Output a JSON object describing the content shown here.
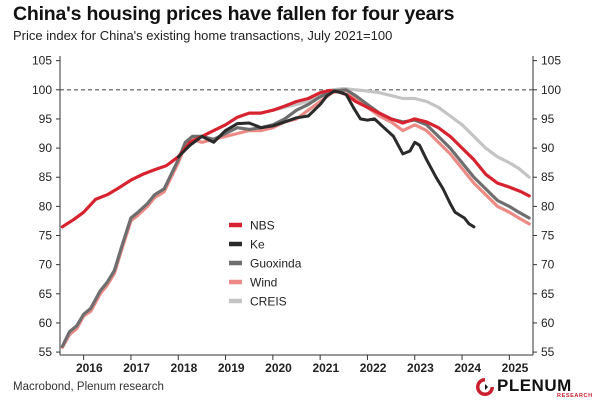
{
  "header": {
    "title": "China's housing prices have fallen for four years",
    "subtitle": "Price index for China's existing home transactions, July 2021=100"
  },
  "footer": {
    "source": "Macrobond, Plenum research",
    "logo_text": "PLENUM",
    "logo_subtext": "RESEARCH",
    "logo_color": "#c8202f"
  },
  "chart_data": {
    "type": "line",
    "title": "China's housing prices have fallen for four years",
    "subtitle": "Price index for China's existing home transactions, July 2021=100",
    "x_unit": "year",
    "xlim": [
      2015.5,
      2025.5
    ],
    "ylim": [
      54.5,
      105.8
    ],
    "x_ticks": [
      "2016",
      "2017",
      "2018",
      "2019",
      "2020",
      "2021",
      "2022",
      "2023",
      "2024",
      "2025"
    ],
    "y_ticks": [
      55,
      60,
      65,
      70,
      75,
      80,
      85,
      90,
      95,
      100,
      105
    ],
    "y_axis_both_sides": true,
    "reference_line": {
      "y": 100,
      "style": "dashed"
    },
    "grid": false,
    "legend_position": "center-left",
    "series": [
      {
        "name": "NBS",
        "color": "#d7222f",
        "width": 3.2,
        "x": [
          2015.55,
          2015.8,
          2016.0,
          2016.25,
          2016.5,
          2016.75,
          2017.0,
          2017.25,
          2017.5,
          2017.75,
          2018.0,
          2018.25,
          2018.5,
          2018.75,
          2019.0,
          2019.25,
          2019.5,
          2019.75,
          2020.0,
          2020.25,
          2020.5,
          2020.75,
          2021.0,
          2021.2,
          2021.4,
          2021.55,
          2021.75,
          2022.0,
          2022.25,
          2022.5,
          2022.75,
          2023.0,
          2023.25,
          2023.5,
          2023.75,
          2024.0,
          2024.25,
          2024.5,
          2024.75,
          2025.0,
          2025.25,
          2025.42
        ],
        "y": [
          76.5,
          77.8,
          79.0,
          81.2,
          82.0,
          83.2,
          84.5,
          85.5,
          86.3,
          87.0,
          88.5,
          91.0,
          92.0,
          93.0,
          94.0,
          95.3,
          96.0,
          96.0,
          96.5,
          97.2,
          98.0,
          98.5,
          99.5,
          99.9,
          99.6,
          99.2,
          98.0,
          97.0,
          96.0,
          95.0,
          94.3,
          95.0,
          94.5,
          93.5,
          92.0,
          90.0,
          88.0,
          85.5,
          84.0,
          83.3,
          82.5,
          81.8
        ]
      },
      {
        "name": "Ke",
        "color": "#2a2a2a",
        "width": 3.0,
        "x": [
          2018.0,
          2018.25,
          2018.5,
          2018.75,
          2019.0,
          2019.25,
          2019.5,
          2019.75,
          2020.0,
          2020.25,
          2020.5,
          2020.75,
          2021.0,
          2021.15,
          2021.3,
          2021.45,
          2021.55,
          2021.7,
          2021.85,
          2022.0,
          2022.15,
          2022.35,
          2022.55,
          2022.75,
          2022.9,
          2023.0,
          2023.1,
          2023.25,
          2023.45,
          2023.6,
          2023.75,
          2023.85,
          2023.95,
          2024.05,
          2024.15,
          2024.25
        ],
        "y": [
          88.5,
          90.5,
          92.0,
          91.0,
          93.0,
          94.2,
          94.3,
          93.5,
          93.8,
          94.5,
          95.2,
          95.5,
          97.5,
          99.0,
          99.8,
          99.5,
          99.2,
          97.0,
          95.0,
          94.8,
          95.0,
          93.5,
          92.0,
          89.0,
          89.5,
          91.0,
          90.5,
          88.0,
          85.0,
          83.0,
          80.5,
          79.0,
          78.5,
          78.0,
          77.0,
          76.5
        ]
      },
      {
        "name": "Guoxinda",
        "color": "#6e6e6e",
        "width": 3.2,
        "x": [
          2015.55,
          2015.7,
          2015.85,
          2016.0,
          2016.15,
          2016.35,
          2016.5,
          2016.65,
          2016.8,
          2017.0,
          2017.15,
          2017.35,
          2017.5,
          2017.7,
          2017.85,
          2018.0,
          2018.15,
          2018.3,
          2018.5,
          2018.75,
          2019.0,
          2019.25,
          2019.5,
          2019.75,
          2020.0,
          2020.25,
          2020.5,
          2020.75,
          2021.0,
          2021.25,
          2021.55,
          2021.75,
          2022.0,
          2022.25,
          2022.5,
          2022.75,
          2023.0,
          2023.25,
          2023.5,
          2023.75,
          2024.0,
          2024.25,
          2024.5,
          2024.75,
          2025.0,
          2025.2,
          2025.42
        ],
        "y": [
          56.0,
          58.5,
          59.5,
          61.5,
          62.5,
          65.5,
          67.0,
          69.0,
          73.0,
          78.0,
          79.0,
          80.5,
          82.0,
          83.0,
          85.5,
          88.0,
          91.0,
          92.0,
          92.0,
          91.5,
          92.5,
          93.5,
          93.2,
          93.5,
          94.0,
          95.0,
          96.5,
          97.5,
          98.8,
          99.8,
          100.0,
          99.0,
          97.5,
          96.0,
          95.0,
          94.5,
          94.8,
          94.0,
          92.0,
          90.0,
          87.5,
          85.0,
          83.0,
          81.0,
          80.0,
          79.0,
          78.0
        ]
      },
      {
        "name": "Wind",
        "color": "#ec8a86",
        "width": 3.2,
        "x": [
          2015.55,
          2015.7,
          2015.85,
          2016.0,
          2016.15,
          2016.35,
          2016.5,
          2016.65,
          2016.8,
          2017.0,
          2017.15,
          2017.35,
          2017.5,
          2017.7,
          2017.85,
          2018.0,
          2018.15,
          2018.3,
          2018.5,
          2018.75,
          2019.0,
          2019.25,
          2019.5,
          2019.75,
          2020.0,
          2020.25,
          2020.5,
          2020.75,
          2021.0,
          2021.25,
          2021.55,
          2021.75,
          2022.0,
          2022.25,
          2022.5,
          2022.75,
          2023.0,
          2023.25,
          2023.5,
          2023.75,
          2024.0,
          2024.25,
          2024.5,
          2024.75,
          2025.0,
          2025.2,
          2025.42
        ],
        "y": [
          55.8,
          58.0,
          59.0,
          61.2,
          62.0,
          65.0,
          66.5,
          68.5,
          72.5,
          77.5,
          78.5,
          80.0,
          81.5,
          82.5,
          85.0,
          87.5,
          90.5,
          91.5,
          91.0,
          91.5,
          92.0,
          92.5,
          93.0,
          93.0,
          93.5,
          94.5,
          95.0,
          96.5,
          98.0,
          99.5,
          100.0,
          98.5,
          97.0,
          95.5,
          94.5,
          93.0,
          94.0,
          93.0,
          91.0,
          89.0,
          86.5,
          84.0,
          82.0,
          80.0,
          79.0,
          78.0,
          77.0
        ]
      },
      {
        "name": "CREIS",
        "color": "#c4c4c4",
        "width": 3.2,
        "x": [
          2020.0,
          2020.25,
          2020.5,
          2020.75,
          2021.0,
          2021.25,
          2021.5,
          2021.75,
          2022.0,
          2022.25,
          2022.5,
          2022.75,
          2023.0,
          2023.25,
          2023.5,
          2023.75,
          2024.0,
          2024.25,
          2024.5,
          2024.75,
          2025.0,
          2025.2,
          2025.42
        ],
        "y": [
          96.5,
          97.0,
          97.5,
          98.0,
          99.0,
          100.0,
          100.2,
          100.0,
          99.8,
          99.5,
          99.0,
          98.5,
          98.5,
          98.0,
          97.0,
          95.5,
          94.0,
          92.0,
          90.0,
          88.5,
          87.5,
          86.5,
          85.0
        ]
      }
    ]
  }
}
